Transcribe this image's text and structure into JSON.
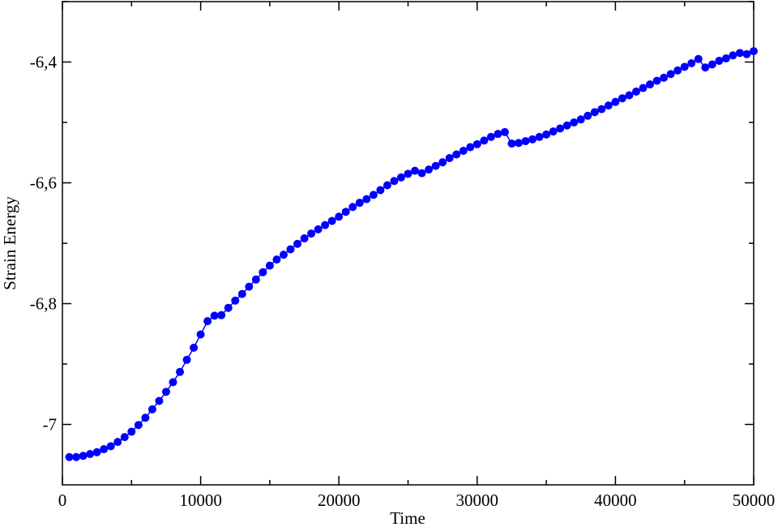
{
  "chart_data": {
    "type": "line",
    "title": "",
    "xlabel": "Time",
    "ylabel": "Strain Energy",
    "xlim": [
      0,
      50000
    ],
    "ylim": [
      -7.1,
      -6.3
    ],
    "grid": false,
    "legend": "none",
    "colors": {
      "series": "#0000ff",
      "axes": "#000000",
      "background": "#ffffff"
    },
    "x_major_ticks": [
      0,
      10000,
      20000,
      30000,
      40000,
      50000
    ],
    "x_tick_labels": [
      "0",
      "10000",
      "20000",
      "30000",
      "40000",
      "50000"
    ],
    "x_minor_ticks": [
      5000,
      15000,
      25000,
      35000,
      45000
    ],
    "y_major_ticks": [
      -7.0,
      -6.8,
      -6.6,
      -6.4
    ],
    "y_tick_labels": [
      "-7",
      "-6,8",
      "-6,6",
      "-6,4"
    ],
    "y_minor_ticks": [
      -6.9,
      -6.7,
      -6.5,
      -6.3
    ],
    "series": [
      {
        "marker": "circle",
        "x": [
          500,
          1000,
          1500,
          2000,
          2500,
          3000,
          3500,
          4000,
          4500,
          5000,
          5500,
          6000,
          6500,
          7000,
          7500,
          8000,
          8500,
          9000,
          9500,
          10000,
          10500,
          11000,
          11500,
          12000,
          12500,
          13000,
          13500,
          14000,
          14500,
          15000,
          15500,
          16000,
          16500,
          17000,
          17500,
          18000,
          18500,
          19000,
          19500,
          20000,
          20500,
          21000,
          21500,
          22000,
          22500,
          23000,
          23500,
          24000,
          24500,
          25000,
          25500,
          26000,
          26500,
          27000,
          27500,
          28000,
          28500,
          29000,
          29500,
          30000,
          30500,
          31000,
          31500,
          32000,
          32500,
          33000,
          33500,
          34000,
          34500,
          35000,
          35500,
          36000,
          36500,
          37000,
          37500,
          38000,
          38500,
          39000,
          39500,
          40000,
          40500,
          41000,
          41500,
          42000,
          42500,
          43000,
          43500,
          44000,
          44500,
          45000,
          45500,
          46000,
          46500,
          47000,
          47500,
          48000,
          48500,
          49000,
          49500,
          50000
        ],
        "y": [
          -7.054,
          -7.054,
          -7.052,
          -7.049,
          -7.046,
          -7.041,
          -7.036,
          -7.029,
          -7.021,
          -7.012,
          -7.001,
          -6.989,
          -6.975,
          -6.961,
          -6.946,
          -6.93,
          -6.913,
          -6.893,
          -6.873,
          -6.851,
          -6.829,
          -6.82,
          -6.819,
          -6.807,
          -6.795,
          -6.784,
          -6.772,
          -6.76,
          -6.748,
          -6.737,
          -6.727,
          -6.719,
          -6.71,
          -6.701,
          -6.692,
          -6.684,
          -6.677,
          -6.67,
          -6.663,
          -6.656,
          -6.648,
          -6.64,
          -6.633,
          -6.627,
          -6.62,
          -6.612,
          -6.604,
          -6.597,
          -6.591,
          -6.585,
          -6.58,
          -6.584,
          -6.578,
          -6.572,
          -6.566,
          -6.559,
          -6.553,
          -6.547,
          -6.541,
          -6.536,
          -6.53,
          -6.524,
          -6.519,
          -6.516,
          -6.535,
          -6.534,
          -6.531,
          -6.528,
          -6.524,
          -6.52,
          -6.515,
          -6.51,
          -6.505,
          -6.5,
          -6.495,
          -6.489,
          -6.483,
          -6.478,
          -6.472,
          -6.466,
          -6.46,
          -6.455,
          -6.449,
          -6.443,
          -6.437,
          -6.431,
          -6.426,
          -6.42,
          -6.414,
          -6.408,
          -6.402,
          -6.395,
          -6.409,
          -6.404,
          -6.398,
          -6.394,
          -6.389,
          -6.385,
          -6.387,
          -6.382
        ]
      }
    ]
  }
}
